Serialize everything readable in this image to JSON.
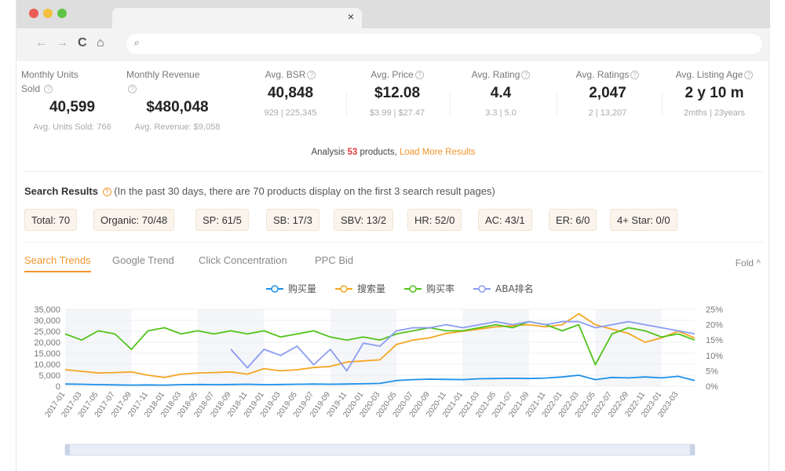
{
  "window": {
    "tab_close": "×",
    "nav_back": "←",
    "nav_forward": "→",
    "nav_reload": "C",
    "nav_home": "⌂",
    "search_glyph": "⌕",
    "dot_colors": [
      "#ec5b56",
      "#f4be3f",
      "#5ec545"
    ]
  },
  "metrics": [
    {
      "label": "Monthly Units Sold",
      "value": "40,599",
      "sub": "Avg. Units Sold: 766"
    },
    {
      "label": "Monthly Revenue",
      "value": "$480,048",
      "sub": "Avg. Revenue: $9,058"
    },
    {
      "label": "Avg. BSR",
      "value": "40,848",
      "sub": "929 | 225,345"
    },
    {
      "label": "Avg. Price",
      "value": "$12.08",
      "sub": "$3.99 | $27.47"
    },
    {
      "label": "Avg. Rating",
      "value": "4.4",
      "sub": "3.3 | 5.0"
    },
    {
      "label": "Avg. Ratings",
      "value": "2,047",
      "sub": "2 | 13,207"
    },
    {
      "label": "Avg. Listing Age",
      "value": "2 y 10 m",
      "sub": "2mths | 23years"
    }
  ],
  "analysis": {
    "prefix": "Analysis ",
    "count": "53",
    "middle": " products, ",
    "link": "Load More Results"
  },
  "search_results": {
    "title": "Search Results",
    "note": "(In the past 30 days, there are 70 products display on the first 3 search result pages)"
  },
  "chips": [
    "Total: 70",
    "Organic: 70/48",
    "SP: 61/5",
    "SB: 17/3",
    "SBV: 13/2",
    "HR: 52/0",
    "AC: 43/1",
    "ER: 6/0",
    "4+ Star: 0/0"
  ],
  "tabs": [
    "Search Trends",
    "Google Trend",
    "Click Concentration",
    "PPC Bid"
  ],
  "fold_label": "Fold ^",
  "colors": {
    "accent": "#f0962c",
    "blue": "#1e90e8",
    "orange": "#f5a623",
    "green": "#52c41a",
    "purple": "#8c9cf2"
  },
  "chart_data": {
    "type": "line",
    "legend": [
      "购买量",
      "搜索量",
      "购买率",
      "ABA排名"
    ],
    "y_left_ticks": [
      "35,000",
      "30,000",
      "25,000",
      "20,000",
      "15,000",
      "10,000",
      "5,000",
      "0"
    ],
    "y_right_ticks": [
      "25%",
      "20%",
      "15%",
      "10%",
      "5%",
      "0%"
    ],
    "ylim_left": [
      0,
      35000
    ],
    "ylim_right": [
      0,
      25
    ],
    "x": [
      "2017-01",
      "2017-03",
      "2017-05",
      "2017-07",
      "2017-09",
      "2017-11",
      "2018-01",
      "2018-03",
      "2018-05",
      "2018-07",
      "2018-09",
      "2018-11",
      "2019-01",
      "2019-03",
      "2019-05",
      "2019-07",
      "2019-09",
      "2019-11",
      "2020-01",
      "2020-03",
      "2020-05",
      "2020-07",
      "2020-09",
      "2020-11",
      "2021-01",
      "2021-03",
      "2021-05",
      "2021-07",
      "2021-09",
      "2021-11",
      "2022-01",
      "2022-03",
      "2022-05",
      "2022-07",
      "2022-09",
      "2022-11",
      "2023-01",
      "2023-03",
      "2023-04"
    ],
    "series": [
      {
        "name": "购买量",
        "axis": "left",
        "values": [
          1000,
          900,
          700,
          600,
          500,
          600,
          500,
          700,
          800,
          700,
          800,
          900,
          700,
          800,
          900,
          1000,
          900,
          1000,
          1100,
          1300,
          2600,
          3000,
          3200,
          3100,
          3000,
          3400,
          3500,
          3600,
          3500,
          3700,
          4200,
          5000,
          3000,
          4000,
          3800,
          4200,
          3800,
          4500,
          2600
        ]
      },
      {
        "name": "搜索量",
        "axis": "left",
        "values": [
          7500,
          6800,
          6000,
          6200,
          6500,
          5000,
          4000,
          5500,
          6000,
          6200,
          6500,
          5500,
          8000,
          7000,
          7500,
          8500,
          9000,
          11000,
          11500,
          12000,
          19000,
          21000,
          22000,
          24000,
          25000,
          26000,
          27000,
          27500,
          28000,
          27000,
          28000,
          33000,
          28000,
          26000,
          24000,
          20000,
          22000,
          25000,
          22000
        ]
      },
      {
        "name": "购买率",
        "axis": "right",
        "values": [
          17,
          15,
          18,
          17,
          12,
          18,
          19,
          17,
          18,
          17,
          18,
          17,
          18,
          16,
          17,
          18,
          16,
          15,
          16,
          15,
          17,
          18,
          19,
          18,
          18,
          19,
          20,
          19,
          21,
          20,
          18,
          20,
          7,
          17,
          19,
          18,
          16,
          17,
          15
        ]
      },
      {
        "name": "ABA排名",
        "axis": "right",
        "values": [
          null,
          null,
          null,
          null,
          null,
          null,
          null,
          null,
          null,
          null,
          12,
          6,
          12,
          10,
          13,
          7,
          12,
          5,
          14,
          13,
          18,
          19,
          19,
          20,
          19,
          20,
          21,
          20,
          21,
          20,
          21,
          21,
          19,
          20,
          21,
          20,
          19,
          18,
          17
        ]
      }
    ]
  }
}
